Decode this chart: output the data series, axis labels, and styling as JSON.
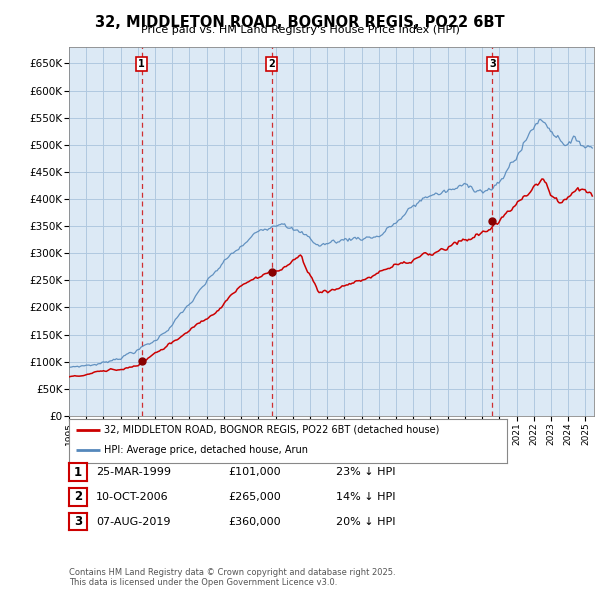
{
  "title": "32, MIDDLETON ROAD, BOGNOR REGIS, PO22 6BT",
  "subtitle": "Price paid vs. HM Land Registry's House Price Index (HPI)",
  "ylim": [
    0,
    680000
  ],
  "yticks": [
    0,
    50000,
    100000,
    150000,
    200000,
    250000,
    300000,
    350000,
    400000,
    450000,
    500000,
    550000,
    600000,
    650000
  ],
  "bg_color": "#ffffff",
  "chart_bg_color": "#dce9f5",
  "grid_color": "#b0c8e0",
  "sale_color": "#cc0000",
  "hpi_color": "#5588bb",
  "sale_label": "32, MIDDLETON ROAD, BOGNOR REGIS, PO22 6BT (detached house)",
  "hpi_label": "HPI: Average price, detached house, Arun",
  "transactions": [
    {
      "num": 1,
      "date": "25-MAR-1999",
      "price": 101000,
      "pct": "23%",
      "x_year": 1999.23
    },
    {
      "num": 2,
      "date": "10-OCT-2006",
      "price": 265000,
      "pct": "14%",
      "x_year": 2006.78
    },
    {
      "num": 3,
      "date": "07-AUG-2019",
      "price": 360000,
      "pct": "20%",
      "x_year": 2019.6
    }
  ],
  "footnote": "Contains HM Land Registry data © Crown copyright and database right 2025.\nThis data is licensed under the Open Government Licence v3.0.",
  "legend_entries": [
    {
      "label": "32, MIDDLETON ROAD, BOGNOR REGIS, PO22 6BT (detached house)",
      "color": "#cc0000"
    },
    {
      "label": "HPI: Average price, detached house, Arun",
      "color": "#5588bb"
    }
  ],
  "xlim_start": 1995,
  "xlim_end": 2025.5
}
